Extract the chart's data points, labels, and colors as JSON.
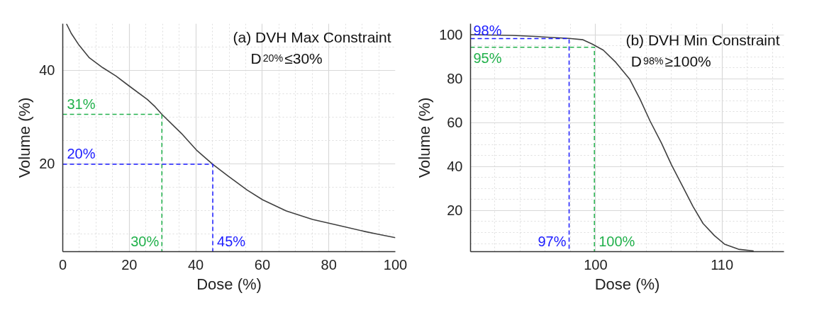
{
  "chart_data": [
    {
      "type": "line",
      "title": "(a) DVH Max Constraint",
      "subtitle": "D$_{20%}$≤30%",
      "xlabel": "Dose (%)",
      "ylabel": "Volume (%)",
      "xlim": [
        0,
        100
      ],
      "ylim": [
        1.2,
        50
      ],
      "xticks": [
        0,
        20,
        40,
        60,
        80,
        100
      ],
      "yticks": [
        20,
        40
      ],
      "grid": true,
      "series": [
        {
          "color": "#404040",
          "line_style": "solid",
          "x": [
            1.1,
            2.5,
            4.9,
            8,
            12,
            16,
            19.9,
            25.4,
            27.8,
            29.8,
            35.7,
            40.4,
            45.1,
            49.9,
            55.4,
            60.1,
            67.2,
            75.1,
            83,
            90.9,
            94.9,
            100
          ],
          "values": [
            50,
            48,
            45.4,
            42.7,
            40.6,
            38.8,
            36.7,
            33.8,
            32.2,
            30.6,
            26.5,
            22.8,
            19.9,
            17.3,
            14.4,
            12.3,
            9.9,
            8.1,
            6.8,
            5.5,
            4.9,
            4.2
          ]
        },
        {
          "color": "#22b14c",
          "line_style": "dashed",
          "x": [
            0,
            29.8,
            29.8
          ],
          "values": [
            30.6,
            30.6,
            1.2
          ]
        },
        {
          "color": "#1a1aff",
          "line_style": "dashed",
          "x": [
            0,
            45.1,
            45.1
          ],
          "values": [
            19.9,
            19.9,
            1.2
          ]
        }
      ],
      "annotations": [
        {
          "text": "31%",
          "x": 0,
          "y": 30.6
        },
        {
          "text": "20%",
          "x": 0,
          "y": 19.9
        },
        {
          "text": "30%",
          "x": 29.8,
          "y": 1.2
        },
        {
          "text": "45%",
          "x": 45.1,
          "y": 1.2
        }
      ]
    },
    {
      "type": "line",
      "title": "(b) DVH Min Constraint",
      "subtitle": "D$_{98%}$≥100%",
      "xlabel": "Dose (%)",
      "ylabel": "Volume (%)",
      "xlim": [
        90.1,
        114.9
      ],
      "ylim": [
        1.3,
        105
      ],
      "xticks": [
        100,
        110
      ],
      "yticks": [
        20,
        40,
        60,
        80,
        100
      ],
      "grid": true,
      "series": [
        {
          "color": "#404040",
          "line_style": "solid",
          "x": [
            90.1,
            93.4,
            95.5,
            97.9,
            99,
            99.7,
            100.6,
            101.6,
            102.7,
            103.5,
            104.3,
            105.2,
            106,
            106.9,
            107.7,
            108.5,
            109.4,
            110.2,
            111.3,
            112.5
          ],
          "values": [
            100,
            99.7,
            99.1,
            98.3,
            97.7,
            95.8,
            93,
            87.4,
            79.7,
            70.8,
            60.8,
            50.8,
            40.8,
            30.8,
            21.9,
            14.1,
            8.6,
            4.7,
            2.4,
            1.6
          ]
        },
        {
          "color": "#1a1aff",
          "line_style": "dashed",
          "x": [
            90.1,
            97.9,
            97.9
          ],
          "values": [
            98.2,
            98.2,
            1.3
          ]
        },
        {
          "color": "#22b14c",
          "line_style": "dashed",
          "x": [
            90.1,
            99.9,
            99.9
          ],
          "values": [
            94.3,
            94.3,
            1.3
          ]
        }
      ],
      "annotations": [
        {
          "text": "98%",
          "x": 90.1,
          "y": 98.2
        },
        {
          "text": "95%",
          "x": 90.1,
          "y": 94.3
        },
        {
          "text": "97%",
          "x": 97.9,
          "y": 1.3
        },
        {
          "text": "100%",
          "x": 99.9,
          "y": 1.3
        }
      ]
    }
  ]
}
